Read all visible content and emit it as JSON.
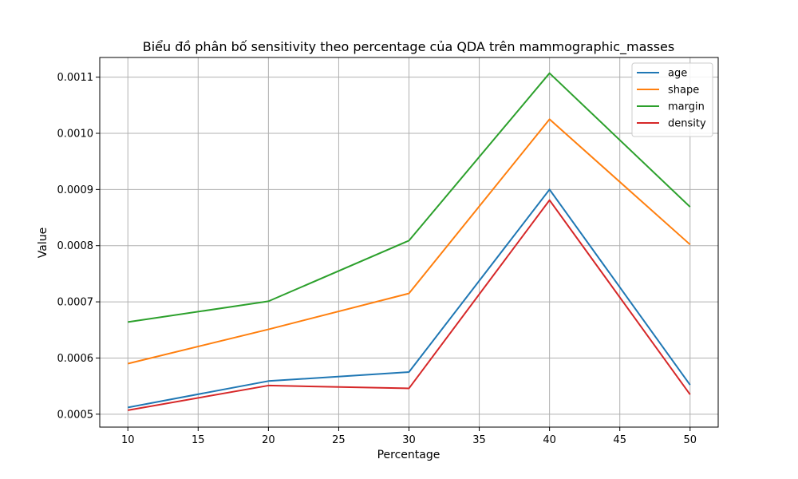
{
  "chart_data": {
    "type": "line",
    "title": "Biểu đồ phân bố sensitivity theo percentage của QDA trên mammographic_masses",
    "xlabel": "Percentage",
    "ylabel": "Value",
    "x": [
      10,
      20,
      30,
      40,
      50
    ],
    "xticks": [
      10,
      15,
      20,
      25,
      30,
      35,
      40,
      45,
      50
    ],
    "yticks": [
      0.0005,
      0.0006,
      0.0007,
      0.0008,
      0.0009,
      0.001,
      0.0011
    ],
    "ytick_labels": [
      "0.0005",
      "0.0006",
      "0.0007",
      "0.0008",
      "0.0009",
      "0.0010",
      "0.0011"
    ],
    "xlim": [
      8,
      52
    ],
    "ylim": [
      0.000477,
      0.001135
    ],
    "grid": true,
    "legend_position": "top-right",
    "series": [
      {
        "name": "age",
        "color": "#1f77b4",
        "values": [
          0.000512,
          0.000559,
          0.000575,
          0.0009,
          0.000552
        ]
      },
      {
        "name": "shape",
        "color": "#ff7f0e",
        "values": [
          0.00059,
          0.000651,
          0.000715,
          0.001025,
          0.000802
        ]
      },
      {
        "name": "margin",
        "color": "#2ca02c",
        "values": [
          0.000664,
          0.000701,
          0.000809,
          0.001107,
          0.000869
        ]
      },
      {
        "name": "density",
        "color": "#d62728",
        "values": [
          0.000507,
          0.000551,
          0.000546,
          0.000881,
          0.000535
        ]
      }
    ]
  }
}
